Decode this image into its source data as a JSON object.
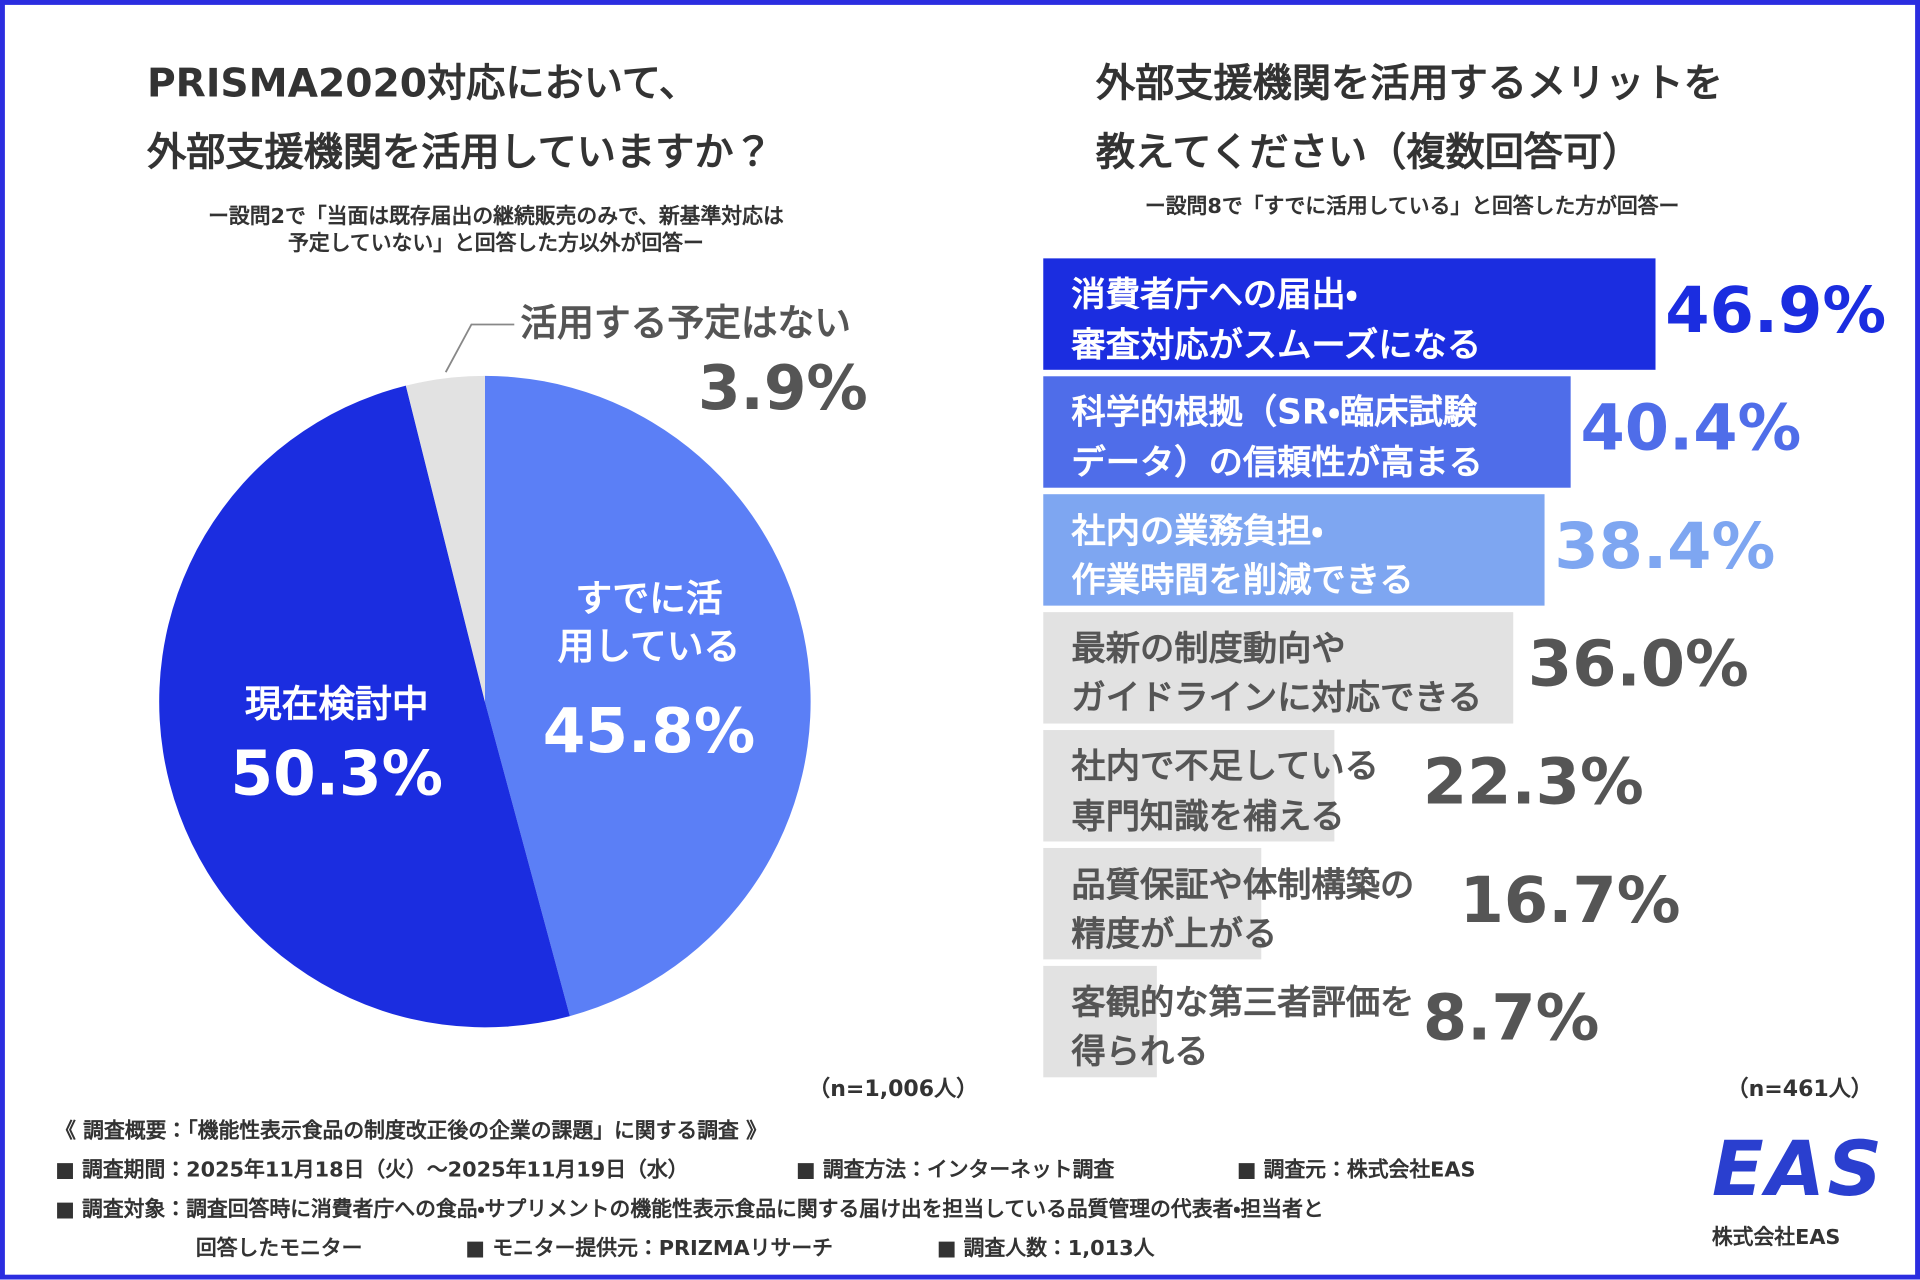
{
  "chart_data": [
    {
      "type": "pie",
      "title": "PRISMA2020対応において、\n外部支援機関を活用していますか？",
      "subtitle": "ー設問2で「当面は既存届出の継続販売のみで、新基準対応は\n予定していない」と回答した方以外が回答ー",
      "categories": [
        "すでに活\n用している",
        "現在検討中",
        "活用する予定はない"
      ],
      "values": [
        45.8,
        50.3,
        3.9
      ],
      "value_labels": [
        "45.8%",
        "50.3%",
        "3.9%"
      ],
      "colors": [
        "#5b7ff6",
        "#1b2de0",
        "#e2e2e2"
      ],
      "note": "（n=1,006人）"
    },
    {
      "type": "hbar",
      "title": "外部支援機関を活用するメリットを\n教えてください（複数回答可）",
      "subtitle": "ー設問8で「すでに活用している」と回答した方が回答ー",
      "categories": [
        "消費者庁への届出・\n審査対応がスムーズになる",
        "科学的根拠（SR・臨床試験\nデータ）の信頼性が高まる",
        "社内の業務負担・\n作業時間を削減できる",
        "最新の制度動向や\nガイドラインに対応できる",
        "社内で不足している\n専門知識を補える",
        "品質保証や体制構築の\n精度が上がる",
        "客観的な第三者評価を\n得られる"
      ],
      "values": [
        46.9,
        40.4,
        38.4,
        36.0,
        22.3,
        16.7,
        8.7
      ],
      "value_labels": [
        "46.9%",
        "40.4%",
        "38.4%",
        "36.0%",
        "22.3%",
        "16.7%",
        "8.7%"
      ],
      "colors": [
        "#1b2de0",
        "#4f6de9",
        "#7ea6f1",
        "#e2e2e2",
        "#e2e2e2",
        "#e2e2e2",
        "#e2e2e2"
      ],
      "value_label_colors": [
        "#1b2de0",
        "#4f6de9",
        "#7ea6f1",
        "#555555",
        "#555555",
        "#555555",
        "#555555"
      ],
      "note": "（n=461人）"
    }
  ],
  "footer": {
    "heading": "《 調査概要：「機能性表示食品の制度改正後の企業の課題」に関する調査 》",
    "items": [
      "■ 調査期間：2025年11月18日（火）～2025年11月19日（水）",
      "■ 調査方法：インターネット調査",
      "■ 調査元：株式会社EAS",
      "■ 調査対象：調査回答時に消費者庁への食品・サプリメントの機能性表示食品に関する届け出を担当している品質管理の代表者・担当者と",
      "回答したモニター",
      "■ モニター提供元：PRIZMAリサーチ",
      "■ 調査人数：1,013人"
    ],
    "logo": "EAS",
    "company": "株式会社EAS"
  }
}
